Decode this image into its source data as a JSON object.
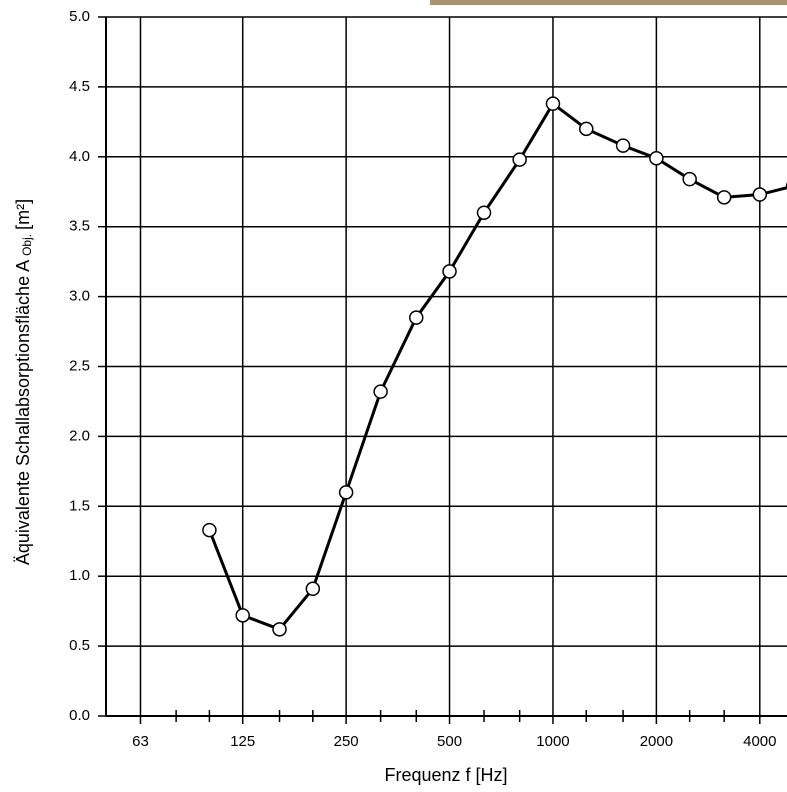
{
  "chart_data": {
    "type": "line",
    "xlabel": "Frequenz  f [Hz]",
    "ylabel": "Äquivalente Schallabsorptionsfläche A",
    "ylabel_sub": "Obj.",
    "ylabel_unit": "[m²]",
    "x": [
      100,
      125,
      160,
      200,
      250,
      315,
      400,
      500,
      630,
      800,
      1000,
      1250,
      1600,
      2000,
      2500,
      3150,
      4000,
      5000
    ],
    "series": [
      {
        "color": "#000000",
        "values": [
          1.33,
          0.72,
          0.62,
          0.91,
          1.6,
          2.32,
          2.85,
          3.18,
          3.6,
          3.98,
          4.38,
          4.2,
          4.08,
          3.99,
          3.84,
          3.71,
          3.73,
          3.79
        ]
      }
    ],
    "xscale": "log",
    "xlim": [
      50,
      4800
    ],
    "xticks": [
      63,
      125,
      250,
      500,
      1000,
      2000,
      4000
    ],
    "xticks_minor": [
      80,
      100,
      160,
      200,
      315,
      400,
      630,
      800,
      1250,
      1600,
      2500,
      3150
    ],
    "ylim": [
      0,
      5
    ],
    "yticks": [
      {
        "value": 0,
        "label": "0.0"
      },
      {
        "value": 0.5,
        "label": "0.5"
      },
      {
        "value": 1,
        "label": "1.0"
      },
      {
        "value": 1.5,
        "label": "1.5"
      },
      {
        "value": 2,
        "label": "2.0"
      },
      {
        "value": 2.5,
        "label": "2.5"
      },
      {
        "value": 3,
        "label": "3.0"
      },
      {
        "value": 3.5,
        "label": "3.5"
      },
      {
        "value": 4,
        "label": "4.0"
      },
      {
        "value": 4.5,
        "label": "4.5"
      },
      {
        "value": 5,
        "label": "5.0"
      }
    ],
    "grid": true
  }
}
